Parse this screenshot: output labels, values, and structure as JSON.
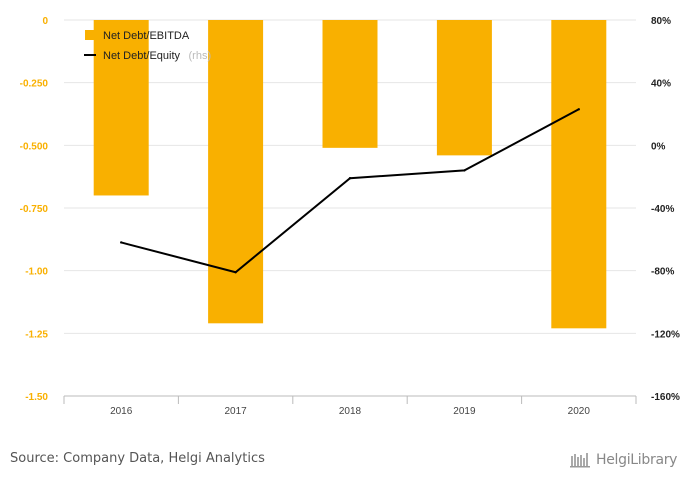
{
  "chart_data": {
    "type": "bar",
    "categories": [
      "2016",
      "2017",
      "2018",
      "2019",
      "2020"
    ],
    "series": [
      {
        "name": "Net Debt/EBITDA",
        "kind": "bar",
        "axis": "left",
        "values": [
          -0.7,
          -1.21,
          -0.51,
          -0.54,
          -1.23
        ],
        "color": "#f9b000"
      },
      {
        "name": "Net Debt/Equity",
        "name_suffix": "(rhs)",
        "kind": "line",
        "axis": "right",
        "values": [
          -62,
          -81,
          -21,
          -16,
          23
        ],
        "color": "#000000"
      }
    ],
    "y_left": {
      "ticks": [
        0,
        -0.25,
        -0.5,
        -0.75,
        -1.0,
        -1.25,
        -1.5
      ],
      "tick_labels": [
        "0",
        "-0.250",
        "-0.500",
        "-0.750",
        "-1.00",
        "-1.25",
        "-1.50"
      ],
      "range": [
        -1.5,
        0
      ],
      "color": "#f9b000"
    },
    "y_right": {
      "ticks": [
        80,
        40,
        0,
        -40,
        -80,
        -120,
        -160
      ],
      "tick_labels": [
        "80%",
        "40%",
        "0%",
        "-40%",
        "-80%",
        "-120%",
        "-160%"
      ],
      "range": [
        -160,
        80
      ]
    },
    "grid": true,
    "legend_position": "top-left"
  },
  "footer": {
    "source": "Source: Company Data, Helgi Analytics",
    "brand": "HelgiLibrary",
    "brand_icon": "library-books-icon"
  }
}
